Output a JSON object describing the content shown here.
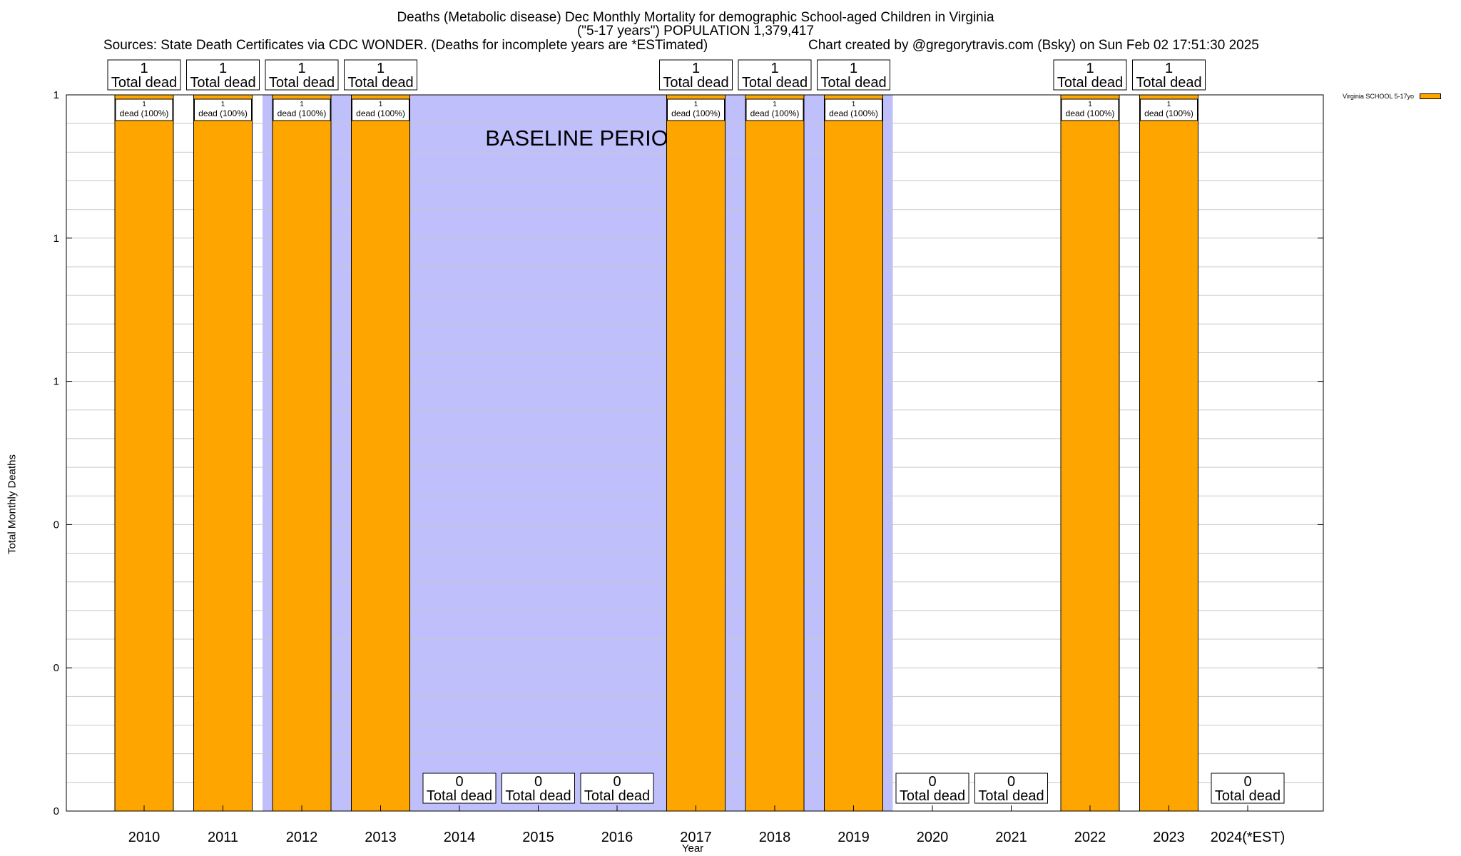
{
  "chart_data": {
    "type": "bar",
    "title_line1": "Deaths (Metabolic disease) Dec Monthly Mortality for demographic School-aged Children in Virginia",
    "title_line2": "(\"5-17 years\") POPULATION 1,379,417",
    "sources": "Sources: State Death Certificates via CDC WONDER. (Deaths for incomplete years are *ESTimated)",
    "credit": "Chart created by @gregorytravis.com (Bsky) on Sun Feb 02 17:51:30 2025",
    "xlabel": "Year",
    "ylabel": "Total Monthly Deaths",
    "categories": [
      "2010",
      "2011",
      "2012",
      "2013",
      "2014",
      "2015",
      "2016",
      "2017",
      "2018",
      "2019",
      "2020",
      "2021",
      "2022",
      "2023",
      "2024(*EST)"
    ],
    "series": [
      {
        "name": "Virginia SCHOOL 5-17yo",
        "values": [
          1,
          1,
          1,
          1,
          0,
          0,
          0,
          1,
          1,
          1,
          0,
          0,
          1,
          1,
          0
        ]
      }
    ],
    "ylim": [
      0,
      1
    ],
    "ytick_labels": [
      "0",
      "0",
      "0",
      "1",
      "1",
      "1"
    ],
    "total_label_suffix": "Total dead",
    "inner_label_text": "dead (100%)",
    "baseline_label": "BASELINE PERIOD",
    "baseline_start": "2012",
    "baseline_end": "2019",
    "legend_position": "top-right",
    "grid": true,
    "colors": {
      "bar": "#ffa500",
      "baseline": "#bfbffc",
      "grid": "#c8c8c8"
    }
  }
}
